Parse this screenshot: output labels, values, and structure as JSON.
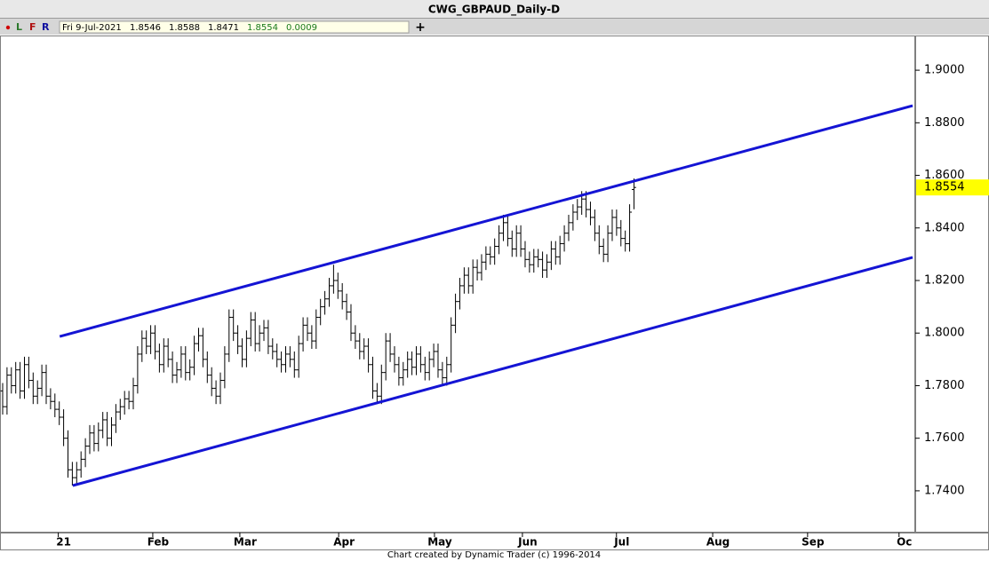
{
  "chart_data": {
    "type": "ohlc",
    "title": "CWG_GBPAUD_Daily-D",
    "toolbar_labels": [
      "L",
      "F",
      "R"
    ],
    "info": {
      "date": "Fri 9-Jul-2021",
      "change": 0.0009
    },
    "credit": "Chart created by Dynamic Trader  (c) 1996-2014",
    "color": "#000000",
    "xlim": [
      -0.612,
      209.6
    ],
    "xticks": [
      {
        "value": 14,
        "label": "21"
      },
      {
        "value": 35.7,
        "label": "Feb"
      },
      {
        "value": 55.7,
        "label": "Mar"
      },
      {
        "value": 78.4,
        "label": "Apr"
      },
      {
        "value": 100.4,
        "label": "May"
      },
      {
        "value": 120.6,
        "label": "Jun"
      },
      {
        "value": 142.2,
        "label": "Jul"
      },
      {
        "value": 164.3,
        "label": "Aug"
      },
      {
        "value": 186.1,
        "label": "Sep"
      },
      {
        "value": 207.1,
        "label": "Oc"
      }
    ],
    "ylim": [
      1.7241,
      1.9132
    ],
    "yticks": [
      {
        "value": 1.74,
        "label": "1.7400"
      },
      {
        "value": 1.76,
        "label": "1.7600"
      },
      {
        "value": 1.78,
        "label": "1.7800"
      },
      {
        "value": 1.8,
        "label": "1.8000"
      },
      {
        "value": 1.82,
        "label": "1.8200"
      },
      {
        "value": 1.84,
        "label": "1.8400"
      },
      {
        "value": 1.86,
        "label": "1.8600"
      },
      {
        "value": 1.88,
        "label": "1.8800"
      },
      {
        "value": 1.9,
        "label": "1.9000"
      }
    ],
    "trendlines": [
      {
        "color": "#1414d4",
        "x": [
          13.1,
          209
        ],
        "y": [
          1.7987,
          1.8865
        ]
      },
      {
        "color": "#1414d4",
        "x": [
          16.1,
          209
        ],
        "y": [
          1.742,
          1.8288
        ]
      }
    ],
    "open": [
      1.778,
      1.772,
      1.784,
      1.78,
      1.786,
      1.778,
      1.788,
      1.782,
      1.776,
      1.779,
      1.785,
      1.776,
      1.774,
      1.771,
      1.768,
      1.76,
      1.748,
      1.745,
      1.748,
      1.752,
      1.757,
      1.762,
      1.758,
      1.763,
      1.767,
      1.76,
      1.765,
      1.77,
      1.772,
      1.775,
      1.774,
      1.78,
      1.792,
      1.798,
      1.795,
      1.8,
      1.793,
      1.788,
      1.795,
      1.79,
      1.784,
      1.786,
      1.792,
      1.785,
      1.787,
      1.796,
      1.799,
      1.79,
      1.784,
      1.779,
      1.776,
      1.782,
      1.792,
      1.806,
      1.8,
      1.795,
      1.79,
      1.798,
      1.805,
      1.796,
      1.8,
      1.802,
      1.795,
      1.793,
      1.79,
      1.788,
      1.792,
      1.79,
      1.786,
      1.796,
      1.803,
      1.8,
      1.797,
      1.806,
      1.81,
      1.813,
      1.818,
      1.82,
      1.816,
      1.812,
      1.808,
      1.8,
      1.797,
      1.793,
      1.795,
      1.788,
      1.778,
      1.776,
      1.785,
      1.797,
      1.792,
      1.788,
      1.783,
      1.786,
      1.79,
      1.787,
      1.792,
      1.788,
      1.785,
      1.79,
      1.793,
      1.786,
      1.783,
      1.788,
      1.803,
      1.812,
      1.818,
      1.822,
      1.818,
      1.825,
      1.823,
      1.827,
      1.83,
      1.829,
      1.833,
      1.838,
      1.842,
      1.836,
      1.832,
      1.838,
      1.832,
      1.828,
      1.826,
      1.829,
      1.828,
      1.824,
      1.827,
      1.832,
      1.829,
      1.834,
      1.838,
      1.842,
      1.846,
      1.848,
      1.851,
      1.847,
      1.844,
      1.838,
      1.833,
      1.83,
      1.838,
      1.844,
      1.84,
      1.836,
      1.834,
      1.8546
    ],
    "high": [
      1.781,
      1.787,
      1.787,
      1.789,
      1.789,
      1.791,
      1.791,
      1.785,
      1.782,
      1.788,
      1.788,
      1.779,
      1.777,
      1.774,
      1.771,
      1.763,
      1.751,
      1.751,
      1.755,
      1.76,
      1.765,
      1.765,
      1.766,
      1.77,
      1.77,
      1.768,
      1.773,
      1.775,
      1.778,
      1.778,
      1.783,
      1.795,
      1.801,
      1.801,
      1.803,
      1.803,
      1.796,
      1.798,
      1.798,
      1.793,
      1.789,
      1.795,
      1.795,
      1.79,
      1.799,
      1.802,
      1.802,
      1.793,
      1.787,
      1.782,
      1.785,
      1.795,
      1.809,
      1.809,
      1.803,
      1.798,
      1.801,
      1.808,
      1.808,
      1.803,
      1.805,
      1.805,
      1.798,
      1.796,
      1.793,
      1.795,
      1.795,
      1.793,
      1.799,
      1.806,
      1.806,
      1.803,
      1.809,
      1.813,
      1.816,
      1.821,
      1.826,
      1.823,
      1.819,
      1.815,
      1.811,
      1.803,
      1.8,
      1.798,
      1.798,
      1.791,
      1.781,
      1.788,
      1.8,
      1.8,
      1.795,
      1.791,
      1.789,
      1.793,
      1.793,
      1.795,
      1.795,
      1.791,
      1.793,
      1.796,
      1.796,
      1.789,
      1.791,
      1.806,
      1.815,
      1.821,
      1.825,
      1.825,
      1.828,
      1.828,
      1.83,
      1.833,
      1.833,
      1.836,
      1.841,
      1.845,
      1.845,
      1.839,
      1.841,
      1.841,
      1.835,
      1.831,
      1.832,
      1.832,
      1.831,
      1.83,
      1.835,
      1.835,
      1.837,
      1.841,
      1.845,
      1.849,
      1.851,
      1.854,
      1.854,
      1.85,
      1.847,
      1.841,
      1.836,
      1.841,
      1.847,
      1.847,
      1.843,
      1.839,
      1.849,
      1.8588
    ],
    "low": [
      1.769,
      1.769,
      1.777,
      1.777,
      1.775,
      1.775,
      1.779,
      1.773,
      1.773,
      1.776,
      1.773,
      1.771,
      1.768,
      1.765,
      1.757,
      1.745,
      1.742,
      1.742,
      1.745,
      1.749,
      1.754,
      1.755,
      1.755,
      1.76,
      1.757,
      1.757,
      1.762,
      1.767,
      1.769,
      1.771,
      1.771,
      1.777,
      1.789,
      1.792,
      1.792,
      1.79,
      1.785,
      1.785,
      1.787,
      1.781,
      1.781,
      1.783,
      1.782,
      1.782,
      1.784,
      1.793,
      1.787,
      1.781,
      1.776,
      1.773,
      1.773,
      1.779,
      1.789,
      1.797,
      1.792,
      1.787,
      1.787,
      1.795,
      1.793,
      1.793,
      1.797,
      1.792,
      1.79,
      1.787,
      1.785,
      1.785,
      1.787,
      1.783,
      1.783,
      1.793,
      1.797,
      1.794,
      1.794,
      1.803,
      1.807,
      1.81,
      1.815,
      1.813,
      1.809,
      1.805,
      1.797,
      1.794,
      1.79,
      1.79,
      1.785,
      1.775,
      1.773,
      1.773,
      1.782,
      1.789,
      1.785,
      1.78,
      1.78,
      1.783,
      1.784,
      1.784,
      1.785,
      1.782,
      1.782,
      1.787,
      1.783,
      1.78,
      1.78,
      1.785,
      1.8,
      1.809,
      1.815,
      1.815,
      1.815,
      1.82,
      1.82,
      1.824,
      1.826,
      1.826,
      1.83,
      1.835,
      1.833,
      1.829,
      1.829,
      1.829,
      1.825,
      1.823,
      1.823,
      1.825,
      1.821,
      1.821,
      1.824,
      1.826,
      1.826,
      1.831,
      1.835,
      1.839,
      1.843,
      1.845,
      1.844,
      1.841,
      1.835,
      1.83,
      1.827,
      1.827,
      1.835,
      1.837,
      1.833,
      1.831,
      1.831,
      1.8471
    ],
    "close": [
      1.772,
      1.784,
      1.78,
      1.786,
      1.778,
      1.788,
      1.782,
      1.776,
      1.779,
      1.785,
      1.776,
      1.774,
      1.771,
      1.768,
      1.76,
      1.748,
      1.745,
      1.748,
      1.752,
      1.757,
      1.762,
      1.758,
      1.763,
      1.767,
      1.76,
      1.765,
      1.77,
      1.772,
      1.775,
      1.774,
      1.78,
      1.792,
      1.798,
      1.795,
      1.8,
      1.793,
      1.788,
      1.795,
      1.79,
      1.784,
      1.786,
      1.792,
      1.785,
      1.787,
      1.796,
      1.799,
      1.79,
      1.784,
      1.779,
      1.776,
      1.782,
      1.792,
      1.806,
      1.8,
      1.795,
      1.79,
      1.798,
      1.805,
      1.796,
      1.8,
      1.802,
      1.795,
      1.793,
      1.79,
      1.788,
      1.792,
      1.79,
      1.786,
      1.796,
      1.803,
      1.8,
      1.797,
      1.806,
      1.81,
      1.813,
      1.818,
      1.82,
      1.816,
      1.812,
      1.808,
      1.8,
      1.797,
      1.793,
      1.795,
      1.788,
      1.778,
      1.776,
      1.785,
      1.797,
      1.792,
      1.788,
      1.783,
      1.786,
      1.79,
      1.787,
      1.792,
      1.788,
      1.785,
      1.79,
      1.793,
      1.786,
      1.783,
      1.788,
      1.803,
      1.812,
      1.818,
      1.822,
      1.818,
      1.825,
      1.823,
      1.827,
      1.83,
      1.829,
      1.833,
      1.838,
      1.842,
      1.836,
      1.832,
      1.838,
      1.832,
      1.828,
      1.826,
      1.829,
      1.828,
      1.824,
      1.827,
      1.832,
      1.829,
      1.834,
      1.838,
      1.842,
      1.846,
      1.848,
      1.851,
      1.847,
      1.844,
      1.838,
      1.833,
      1.83,
      1.838,
      1.844,
      1.84,
      1.836,
      1.834,
      1.846,
      1.8554
    ]
  }
}
